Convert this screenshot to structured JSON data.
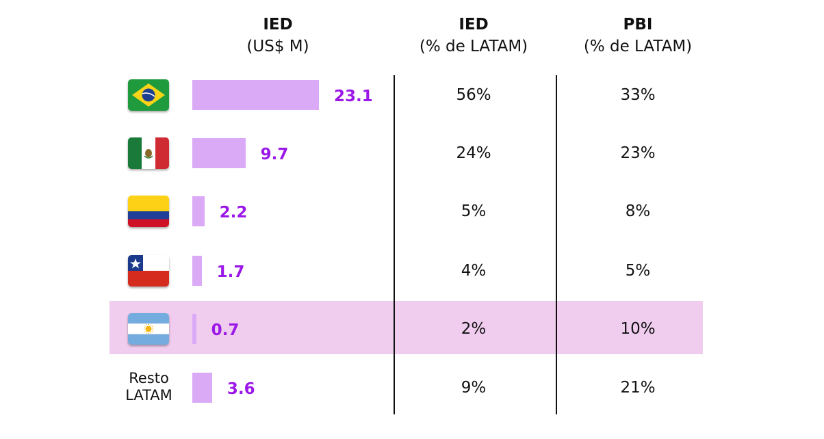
{
  "headers": {
    "ied": {
      "title": "IED",
      "subtitle": "(US$ M)"
    },
    "ied_pct": {
      "title": "IED",
      "subtitle": "(% de LATAM)"
    },
    "pbi_pct": {
      "title": "PBI",
      "subtitle": "(% de LATAM)"
    }
  },
  "colors": {
    "bar": "#dbaaf7",
    "value_text": "#9b18e8",
    "highlight": "#f0cdee"
  },
  "rows": [
    {
      "flag": "brazil-flag-icon",
      "label": "",
      "ied_pct": "56%",
      "pbi_pct": "33%",
      "highlighted": false
    },
    {
      "flag": "mexico-flag-icon",
      "label": "",
      "ied_pct": "24%",
      "pbi_pct": "23%",
      "highlighted": false
    },
    {
      "flag": "colombia-flag-icon",
      "label": "",
      "ied_pct": "5%",
      "pbi_pct": "8%",
      "highlighted": false
    },
    {
      "flag": "chile-flag-icon",
      "label": "",
      "ied_pct": "4%",
      "pbi_pct": "5%",
      "highlighted": false
    },
    {
      "flag": "argentina-flag-icon",
      "label": "",
      "ied_pct": "2%",
      "pbi_pct": "10%",
      "highlighted": true
    },
    {
      "flag": "",
      "label": "Resto LATAM",
      "label_lines": [
        "Resto",
        "LATAM"
      ],
      "ied_pct": "9%",
      "pbi_pct": "21%",
      "highlighted": false
    }
  ],
  "chart_data": {
    "type": "bar",
    "orientation": "horizontal",
    "categories": [
      "Brasil",
      "México",
      "Colombia",
      "Chile",
      "Argentina",
      "Resto LATAM"
    ],
    "values": [
      23.1,
      9.7,
      2.2,
      1.7,
      0.7,
      3.6
    ],
    "value_labels": [
      "23.1",
      "9.7",
      "2.2",
      "1.7",
      "0.7",
      "3.6"
    ],
    "title": "",
    "xlabel": "",
    "ylabel": "",
    "grid": false,
    "legend": "none"
  }
}
